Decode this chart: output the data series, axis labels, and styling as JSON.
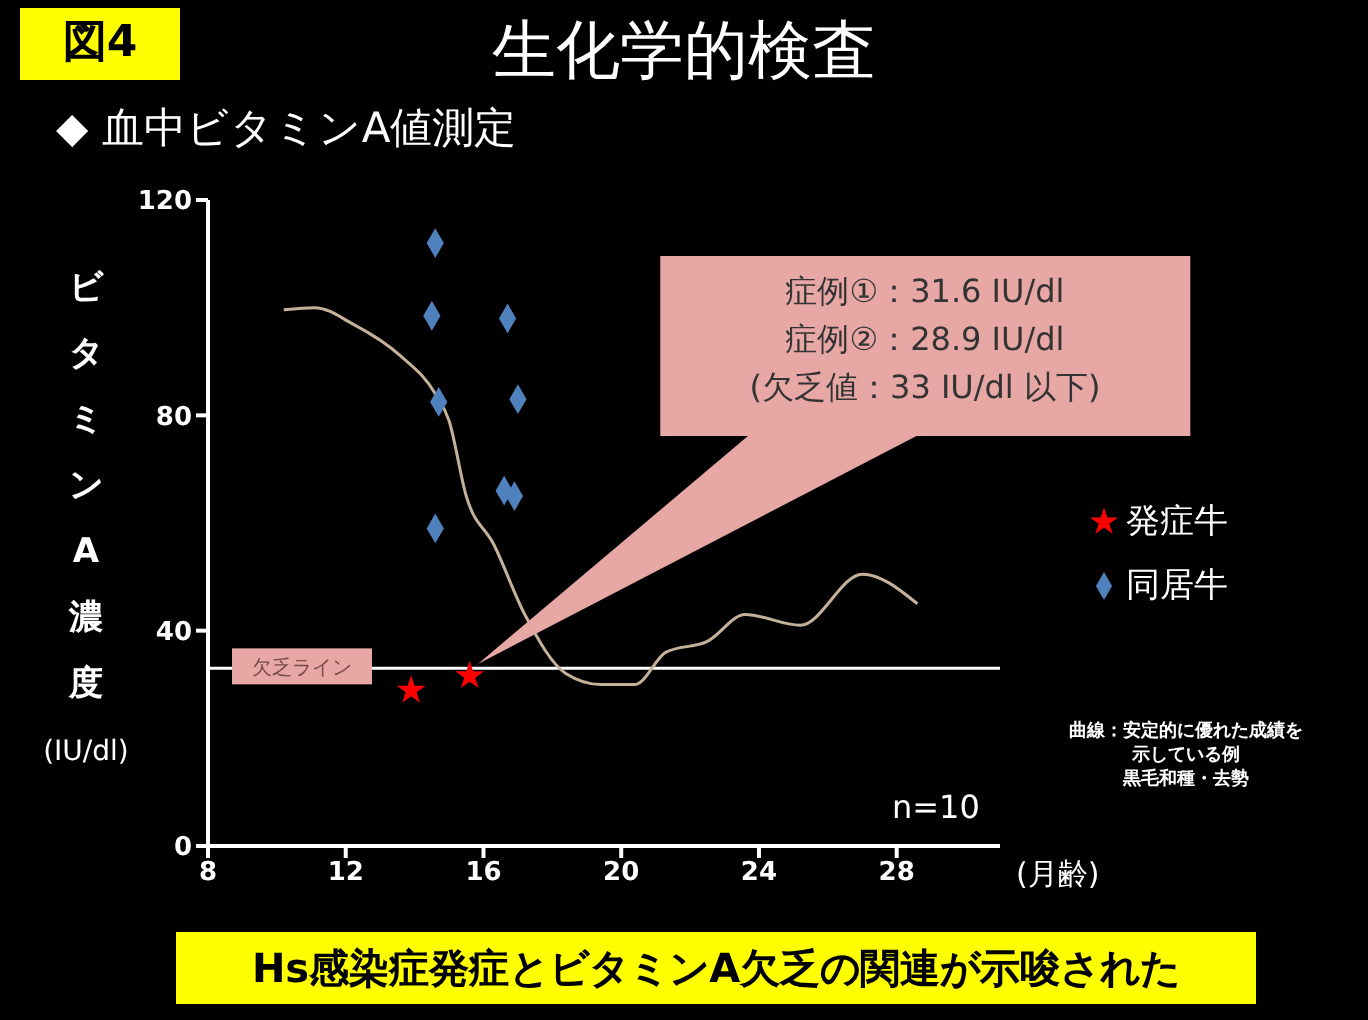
{
  "chart_data": {
    "type": "scatter",
    "title": "生化学的検査",
    "subtitle": "◆ 血中ビタミンA値測定",
    "xlabel": "(月齢)",
    "ylabel": "ビタミンA濃度 (IU/dl)",
    "xlim": [
      8,
      31
    ],
    "xticks": [
      8,
      12,
      16,
      20,
      24,
      28
    ],
    "ylim": [
      0,
      120
    ],
    "yticks": [
      0,
      40,
      80,
      120
    ],
    "grid": false,
    "legend": "right",
    "series": [
      {
        "name": "発症牛",
        "marker": "star",
        "color": "#ff0000",
        "x": [
          13.9,
          15.6
        ],
        "values": [
          28.9,
          31.6
        ]
      },
      {
        "name": "同居牛",
        "marker": "diamond",
        "color": "#4f81bd",
        "x": [
          14.6,
          14.5,
          16.7,
          14.7,
          17.0,
          16.6,
          16.9,
          14.6
        ],
        "values": [
          112,
          98.5,
          98,
          82.5,
          83,
          66,
          65,
          59
        ]
      },
      {
        "type": "line",
        "marker": "none",
        "color": "#c4b29a",
        "x": [
          10.2,
          11.1,
          12.2,
          13.6,
          14.6,
          15.0,
          15.5,
          16.3,
          17.2,
          18.4,
          19.4,
          20.4,
          21.3,
          22.5,
          23.6,
          25.2,
          27.0,
          28.6
        ],
        "values": [
          99.6,
          100,
          97,
          91,
          84,
          79,
          65,
          56,
          43,
          32,
          30,
          30,
          36,
          38,
          43,
          41,
          50.5,
          45
        ]
      }
    ],
    "ref_lines": [
      {
        "axis": "y",
        "value": 33,
        "label": "欠乏ライン",
        "color": "#ffffff"
      }
    ],
    "annotations": [
      "図4",
      "症例①：31.6 IU/dl\n症例②：28.9 IU/dl\n(欠乏値：33 IU/dl 以下)",
      "n=10",
      "曲線：安定的に優れた成績を示している例",
      "黒毛和種・去勢",
      "Hs感染症発症とビタミンA欠乏の関連が示唆された"
    ]
  }
}
